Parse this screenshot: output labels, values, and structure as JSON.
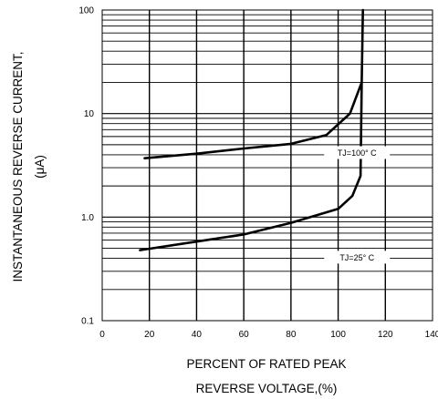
{
  "chart_data": {
    "type": "line",
    "ylabel_line1": "INSTANTANEOUS REVERSE CURRENT,",
    "ylabel_line2": "(μA)",
    "xlabel_line1": "PERCENT OF RATED PEAK",
    "xlabel_line2": "REVERSE VOLTAGE,(%)",
    "x_ticks": [
      "0",
      "20",
      "40",
      "60",
      "80",
      "100",
      "120",
      "140"
    ],
    "x_tick_values": [
      0,
      20,
      40,
      60,
      80,
      100,
      120,
      140
    ],
    "y_ticks": [
      "0.1",
      "1.0",
      "10",
      "100"
    ],
    "y_tick_values": [
      0.1,
      1,
      10,
      100
    ],
    "xlim": [
      0,
      140
    ],
    "ylim": [
      0.1,
      100
    ],
    "y_scale": "log",
    "grid": true,
    "series": [
      {
        "label": "TJ=100° C",
        "points": [
          [
            18,
            3.7
          ],
          [
            40,
            4.1
          ],
          [
            60,
            4.6
          ],
          [
            80,
            5.1
          ],
          [
            95,
            6.2
          ],
          [
            105,
            10
          ],
          [
            110,
            20
          ],
          [
            110.5,
            100
          ]
        ]
      },
      {
        "label": "TJ=25° C",
        "points": [
          [
            16,
            0.48
          ],
          [
            40,
            0.58
          ],
          [
            60,
            0.68
          ],
          [
            80,
            0.88
          ],
          [
            100,
            1.2
          ],
          [
            106,
            1.6
          ],
          [
            109.5,
            2.5
          ],
          [
            110,
            20
          ]
        ]
      }
    ]
  }
}
